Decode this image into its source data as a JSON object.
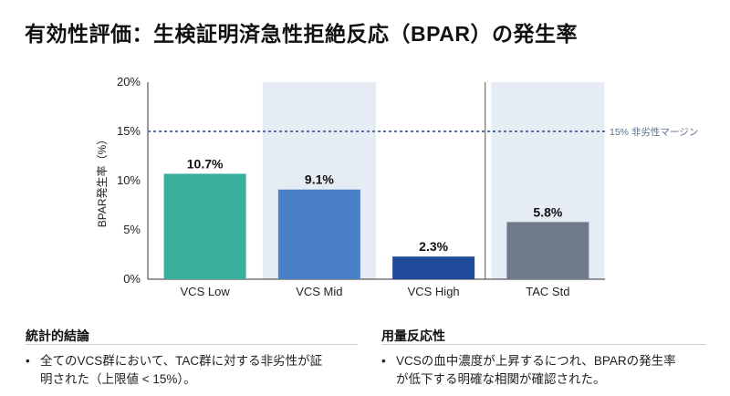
{
  "title": "有効性評価：生検証明済急性拒絶反応（BPAR）の発生率",
  "chart_data": {
    "type": "bar",
    "categories": [
      "VCS Low",
      "VCS Mid",
      "VCS High",
      "TAC Std"
    ],
    "values": [
      10.7,
      9.1,
      2.3,
      5.8
    ],
    "value_labels": [
      "10.7%",
      "9.1%",
      "2.3%",
      "5.8%"
    ],
    "colors": [
      "#3aae9c",
      "#4a7fc8",
      "#1f4a9a",
      "#6f7b8c"
    ],
    "highlighted_categories": [
      "VCS Mid",
      "TAC Std"
    ],
    "ylabel": "BPAR発生率（%）",
    "ylim": [
      0,
      20
    ],
    "yticks": [
      0,
      5,
      10,
      15,
      20
    ],
    "ytick_labels": [
      "0%",
      "5%",
      "10%",
      "15%",
      "20%"
    ],
    "reference_line": {
      "value": 15,
      "label": "15% 非劣性マージン",
      "color": "#5a6f8f"
    }
  },
  "sections": [
    {
      "heading": "統計的結論",
      "bullet_lines": [
        "全てのVCS群において、TAC群に対する非劣性が証",
        "明された（上限値 < 15%）。"
      ]
    },
    {
      "heading": "用量反応性",
      "bullet_lines": [
        "VCSの血中濃度が上昇するにつれ、BPARの発生率",
        "が低下する明確な相関が確認された。"
      ]
    }
  ]
}
